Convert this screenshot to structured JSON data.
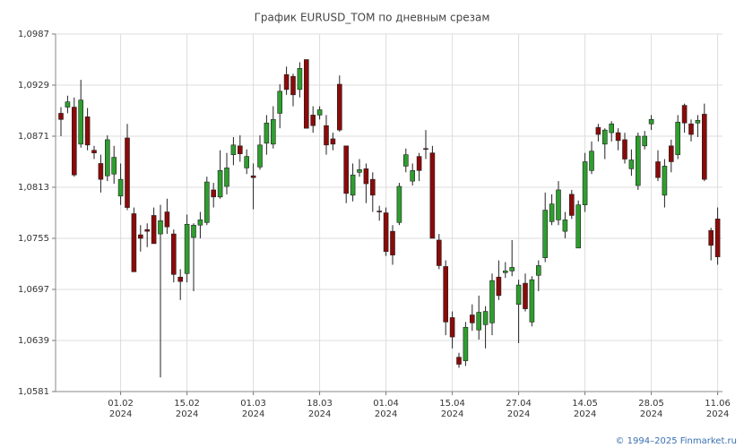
{
  "chart_data": {
    "type": "candlestick",
    "title": "График EURUSD_TOM по дневным срезам",
    "credit": "© 1994–2025 Finmarket.ru",
    "up_color": "#2e9e2e",
    "down_color": "#8b0a0a",
    "grid": true,
    "ylim": [
      1.0581,
      1.0987
    ],
    "yticks": [
      {
        "value": 1.0987,
        "label": "1,0987"
      },
      {
        "value": 1.0929,
        "label": "1,0929"
      },
      {
        "value": 1.0871,
        "label": "1,0871"
      },
      {
        "value": 1.0813,
        "label": "1,0813"
      },
      {
        "value": 1.0755,
        "label": "1,0755"
      },
      {
        "value": 1.0697,
        "label": "1,0697"
      },
      {
        "value": 1.0639,
        "label": "1,0639"
      },
      {
        "value": 1.0581,
        "label": "1,0581"
      }
    ],
    "xticks": [
      {
        "value": 9,
        "label": "01.02",
        "year": "2024"
      },
      {
        "value": 19,
        "label": "15.02",
        "year": "2024"
      },
      {
        "value": 29,
        "label": "01.03",
        "year": "2024"
      },
      {
        "value": 39,
        "label": "18.03",
        "year": "2024"
      },
      {
        "value": 49,
        "label": "01.04",
        "year": "2024"
      },
      {
        "value": 59,
        "label": "15.04",
        "year": "2024"
      },
      {
        "value": 69,
        "label": "27.04",
        "year": "2024"
      },
      {
        "value": 79,
        "label": "14.05",
        "year": "2024"
      },
      {
        "value": 89,
        "label": "28.05",
        "year": "2024"
      },
      {
        "value": 99,
        "label": "11.06",
        "year": "2024"
      }
    ],
    "open": [
      1.0897,
      1.0904,
      1.0904,
      1.0862,
      1.0893,
      1.0855,
      1.084,
      1.0826,
      1.0828,
      1.0803,
      1.0869,
      1.0783,
      1.0759,
      1.0765,
      1.0781,
      1.076,
      1.0785,
      1.076,
      1.0711,
      1.0715,
      1.0756,
      1.077,
      1.0773,
      1.081,
      1.0802,
      1.0814,
      1.085,
      1.086,
      1.0835,
      1.0826,
      1.0836,
      1.0863,
      1.0862,
      1.0897,
      1.0941,
      1.0939,
      1.0924,
      1.0958,
      1.0895,
      1.0895,
      1.0883,
      1.0868,
      1.093,
      1.086,
      1.0804,
      1.083,
      1.0834,
      1.0822,
      1.0786,
      1.0784,
      1.0763,
      1.0773,
      1.0837,
      1.082,
      1.0848,
      1.0857,
      1.0852,
      1.0753,
      1.0723,
      1.0665,
      1.062,
      1.0616,
      1.0668,
      1.0651,
      1.0657,
      1.0659,
      1.0711,
      1.0716,
      1.0718,
      1.068,
      1.0704,
      1.066,
      1.0713,
      1.0733,
      1.0774,
      1.0776,
      1.0763,
      1.0805,
      1.0744,
      1.0793,
      1.0832,
      1.0881,
      1.0862,
      1.0875,
      1.0875,
      1.0867,
      1.0834,
      1.0815,
      1.086,
      1.0885,
      1.0842,
      1.0804,
      1.086,
      1.085,
      1.0906,
      1.0885,
      1.0886,
      1.0896,
      1.0764,
      1.0777
    ],
    "high": [
      1.0904,
      1.0917,
      1.0915,
      1.0935,
      1.0903,
      1.086,
      1.085,
      1.0872,
      1.086,
      1.084,
      1.0885,
      1.079,
      1.077,
      1.0772,
      1.079,
      1.0793,
      1.08,
      1.0765,
      1.072,
      1.0782,
      1.0772,
      1.0785,
      1.0825,
      1.0818,
      1.0855,
      1.0852,
      1.087,
      1.0872,
      1.0856,
      1.084,
      1.0872,
      1.0895,
      1.0905,
      1.093,
      1.095,
      1.0942,
      1.0955,
      1.0958,
      1.0905,
      1.0905,
      1.0895,
      1.0875,
      1.094,
      1.086,
      1.084,
      1.0845,
      1.084,
      1.083,
      1.0792,
      1.079,
      1.077,
      1.0818,
      1.0857,
      1.084,
      1.0852,
      1.0878,
      1.086,
      1.076,
      1.073,
      1.0672,
      1.0625,
      1.066,
      1.068,
      1.069,
      1.0678,
      1.0715,
      1.073,
      1.0728,
      1.0753,
      1.0708,
      1.0715,
      1.0712,
      1.073,
      1.0807,
      1.0805,
      1.082,
      1.0785,
      1.081,
      1.0798,
      1.0852,
      1.0865,
      1.0885,
      1.088,
      1.0888,
      1.088,
      1.0875,
      1.0856,
      1.0875,
      1.0877,
      1.0895,
      1.0855,
      1.0845,
      1.0867,
      1.0895,
      1.0908,
      1.089,
      1.0895,
      1.0908,
      1.0767,
      1.079
    ],
    "low": [
      1.0871,
      1.0897,
      1.0825,
      1.0858,
      1.0855,
      1.0845,
      1.0807,
      1.082,
      1.0817,
      1.0793,
      1.0787,
      1.0717,
      1.074,
      1.0745,
      1.0749,
      1.0597,
      1.076,
      1.0705,
      1.0685,
      1.0705,
      1.0695,
      1.0755,
      1.077,
      1.079,
      1.08,
      1.0805,
      1.0838,
      1.0842,
      1.0828,
      1.0788,
      1.0833,
      1.085,
      1.0857,
      1.088,
      1.0918,
      1.0905,
      1.0915,
      1.088,
      1.0875,
      1.089,
      1.085,
      1.0855,
      1.0876,
      1.0795,
      1.0797,
      1.0825,
      1.0795,
      1.0785,
      1.0775,
      1.0735,
      1.0725,
      1.077,
      1.083,
      1.0815,
      1.082,
      1.0845,
      1.0755,
      1.072,
      1.0645,
      1.063,
      1.0608,
      1.061,
      1.065,
      1.064,
      1.063,
      1.0645,
      1.0685,
      1.071,
      1.0712,
      1.0636,
      1.0672,
      1.0655,
      1.0695,
      1.0728,
      1.077,
      1.077,
      1.0755,
      1.0777,
      1.0744,
      1.0785,
      1.0828,
      1.0865,
      1.0845,
      1.0865,
      1.0855,
      1.084,
      1.0826,
      1.081,
      1.0856,
      1.0878,
      1.082,
      1.079,
      1.083,
      1.0845,
      1.0875,
      1.0865,
      1.087,
      1.082,
      1.073,
      1.0725
    ],
    "close": [
      1.089,
      1.091,
      1.0827,
      1.0912,
      1.0861,
      1.0852,
      1.0822,
      1.0867,
      1.0847,
      1.0822,
      1.079,
      1.0717,
      1.0755,
      1.0763,
      1.0749,
      1.0775,
      1.0768,
      1.0714,
      1.0706,
      1.0771,
      1.077,
      1.0776,
      1.0819,
      1.0802,
      1.0832,
      1.0835,
      1.0861,
      1.0851,
      1.0848,
      1.0824,
      1.0861,
      1.0886,
      1.089,
      1.0922,
      1.0924,
      1.0918,
      1.0948,
      1.088,
      1.0883,
      1.0901,
      1.0861,
      1.0862,
      1.0878,
      1.0806,
      1.0827,
      1.0833,
      1.0817,
      1.0804,
      1.0785,
      1.074,
      1.0736,
      1.0814,
      1.085,
      1.0832,
      1.0832,
      1.0856,
      1.0755,
      1.0724,
      1.066,
      1.0643,
      1.0612,
      1.0654,
      1.0659,
      1.0671,
      1.0672,
      1.0707,
      1.069,
      1.0718,
      1.0722,
      1.0702,
      1.0675,
      1.0708,
      1.0724,
      1.0787,
      1.0794,
      1.081,
      1.0776,
      1.0781,
      1.0793,
      1.0842,
      1.0854,
      1.0873,
      1.0878,
      1.0885,
      1.0866,
      1.0845,
      1.0844,
      1.0871,
      1.0871,
      1.089,
      1.0824,
      1.0837,
      1.0842,
      1.0887,
      1.0886,
      1.0873,
      1.0889,
      1.0822,
      1.0747,
      1.0734
    ]
  }
}
